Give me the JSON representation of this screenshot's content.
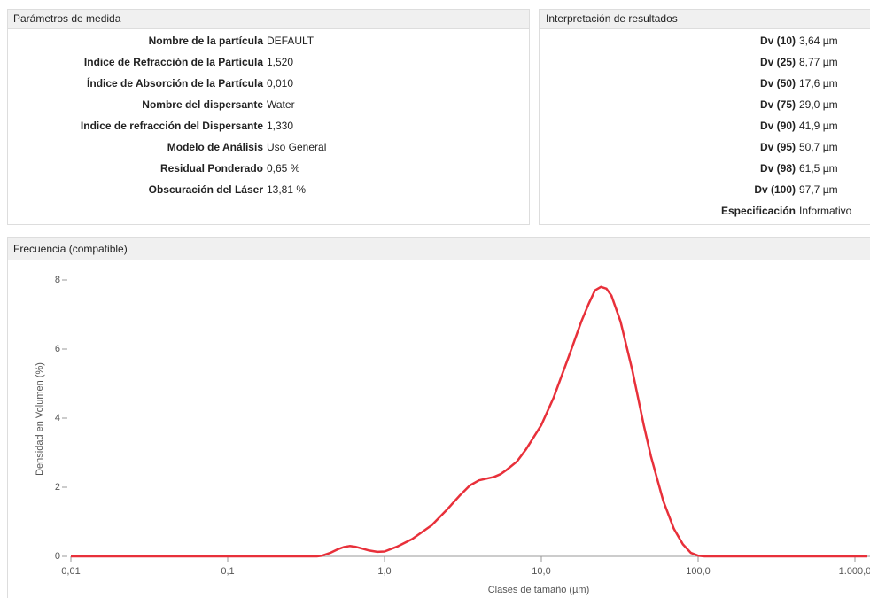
{
  "params": {
    "title": "Parámetros de medida",
    "rows": [
      [
        "Nombre de la partícula",
        "DEFAULT"
      ],
      [
        "Indice de Refracción de la Partícula",
        "1,520"
      ],
      [
        "Índice de Absorción de la Partícula",
        "0,010"
      ],
      [
        "Nombre del dispersante",
        "Water"
      ],
      [
        "Indice de refracción del Dispersante",
        "1,330"
      ],
      [
        "Modelo de Análisis",
        "Uso General"
      ],
      [
        "Residual Ponderado",
        "0,65 %"
      ],
      [
        "Obscuración del Láser",
        "13,81 %"
      ]
    ]
  },
  "results": {
    "title": "Interpretación de resultados",
    "rows": [
      [
        "Dv (10)",
        "3,64 µm"
      ],
      [
        "Dv (25)",
        "8,77 µm"
      ],
      [
        "Dv (50)",
        "17,6 µm"
      ],
      [
        "Dv (75)",
        "29,0 µm"
      ],
      [
        "Dv (90)",
        "41,9 µm"
      ],
      [
        "Dv (95)",
        "50,7 µm"
      ],
      [
        "Dv (98)",
        "61,5 µm"
      ],
      [
        "Dv (100)",
        "97,7 µm"
      ],
      [
        "Especificación",
        "Informativo"
      ]
    ]
  },
  "chart_data": {
    "type": "line",
    "title": "Frecuencia (compatible)",
    "x_label": "Clases de tamaño (µm)",
    "y_label": "Densidad en Volumen (%)",
    "x": [
      0.01,
      0.1,
      0.37,
      0.4,
      0.45,
      0.5,
      0.55,
      0.6,
      0.65,
      0.7,
      0.8,
      0.9,
      1.0,
      1.2,
      1.5,
      2,
      2.5,
      3,
      3.5,
      4,
      5,
      5.5,
      6,
      7,
      8,
      10,
      12,
      15,
      18,
      20,
      22,
      24,
      26,
      28,
      32,
      38,
      45,
      50,
      60,
      70,
      80,
      90,
      100,
      110,
      1000,
      1200
    ],
    "values": [
      0,
      0,
      0,
      0.02,
      0.1,
      0.2,
      0.27,
      0.3,
      0.28,
      0.24,
      0.17,
      0.13,
      0.14,
      0.28,
      0.5,
      0.9,
      1.35,
      1.75,
      2.05,
      2.2,
      2.3,
      2.38,
      2.5,
      2.75,
      3.1,
      3.8,
      4.6,
      5.8,
      6.8,
      7.3,
      7.7,
      7.8,
      7.75,
      7.55,
      6.8,
      5.4,
      3.8,
      2.9,
      1.6,
      0.8,
      0.35,
      0.1,
      0.02,
      0,
      0,
      0
    ],
    "color": "#e8303a",
    "xscale": "log",
    "xlim": [
      0.01,
      1200
    ],
    "ylim": [
      0,
      8
    ],
    "xticks": [
      {
        "value": 0.01,
        "label": "0,01"
      },
      {
        "value": 0.1,
        "label": "0,1"
      },
      {
        "value": 1,
        "label": "1,0"
      },
      {
        "value": 10,
        "label": "10,0"
      },
      {
        "value": 100,
        "label": "100,0"
      },
      {
        "value": 1000,
        "label": "1.000,0"
      }
    ],
    "yticks": [
      0,
      2,
      4,
      6,
      8
    ]
  }
}
